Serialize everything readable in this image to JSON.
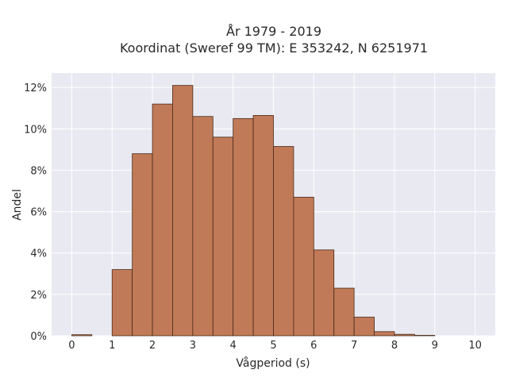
{
  "chart_data": {
    "type": "bar",
    "title_line1": "År 1979 - 2019",
    "title_line2": "Koordinat (Sweref 99 TM): E 353242, N 6251971",
    "xlabel": "Vågperiod (s)",
    "ylabel": "Andel",
    "bin_width": 0.5,
    "bins": [
      {
        "x0": 0.0,
        "value": 0.05
      },
      {
        "x0": 0.5,
        "value": 0.0
      },
      {
        "x0": 1.0,
        "value": 3.2
      },
      {
        "x0": 1.5,
        "value": 8.8
      },
      {
        "x0": 2.0,
        "value": 11.2
      },
      {
        "x0": 2.5,
        "value": 12.1
      },
      {
        "x0": 3.0,
        "value": 10.6
      },
      {
        "x0": 3.5,
        "value": 9.6
      },
      {
        "x0": 4.0,
        "value": 10.5
      },
      {
        "x0": 4.5,
        "value": 10.65
      },
      {
        "x0": 5.0,
        "value": 9.15
      },
      {
        "x0": 5.5,
        "value": 6.7
      },
      {
        "x0": 6.0,
        "value": 4.15
      },
      {
        "x0": 6.5,
        "value": 2.3
      },
      {
        "x0": 7.0,
        "value": 0.9
      },
      {
        "x0": 7.5,
        "value": 0.2
      },
      {
        "x0": 8.0,
        "value": 0.07
      },
      {
        "x0": 8.5,
        "value": 0.02
      }
    ],
    "x_ticks": [
      0,
      1,
      2,
      3,
      4,
      5,
      6,
      7,
      8,
      9,
      10
    ],
    "x_tick_labels": [
      "0",
      "1",
      "2",
      "3",
      "4",
      "5",
      "6",
      "7",
      "8",
      "9",
      "10"
    ],
    "y_ticks": [
      0,
      2,
      4,
      6,
      8,
      10,
      12
    ],
    "y_tick_labels": [
      "0%",
      "2%",
      "4%",
      "6%",
      "8%",
      "10%",
      "12%"
    ],
    "xlim": [
      -0.5,
      10.5
    ],
    "ylim": [
      0,
      12.7
    ],
    "grid": true,
    "bar_color": "#c07a57",
    "bar_edge_color": "#4a2a1a",
    "plot_background": "#e9e9f1",
    "grid_color": "#ffffff"
  }
}
